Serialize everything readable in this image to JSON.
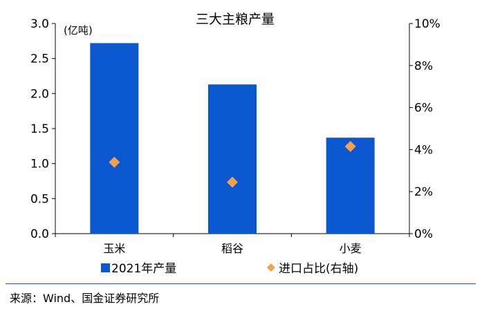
{
  "chart_data": {
    "type": "bar",
    "title": "三大主粮产量",
    "unit_label": "(亿吨)",
    "categories": [
      "玉米",
      "稻谷",
      "小麦"
    ],
    "series": [
      {
        "name": "2021年产量",
        "kind": "bar",
        "axis": "left",
        "color": "#0b57d0",
        "values": [
          2.72,
          2.13,
          1.37
        ]
      },
      {
        "name": "进口占比(右轴)",
        "kind": "marker",
        "marker": "diamond",
        "axis": "right",
        "color": "#f5a04a",
        "values": [
          3.4,
          2.45,
          4.15
        ]
      }
    ],
    "y_left": {
      "min": 0,
      "max": 3,
      "ticks": [
        "0.0",
        "0.5",
        "1.0",
        "1.5",
        "2.0",
        "2.5",
        "3.0"
      ]
    },
    "y_right": {
      "min": 0,
      "max": 10,
      "ticks": [
        "0%",
        "2%",
        "4%",
        "6%",
        "8%",
        "10%"
      ]
    },
    "grid": false,
    "legend_position": "bottom"
  },
  "source_text": "来源：Wind、国金证券研究所"
}
